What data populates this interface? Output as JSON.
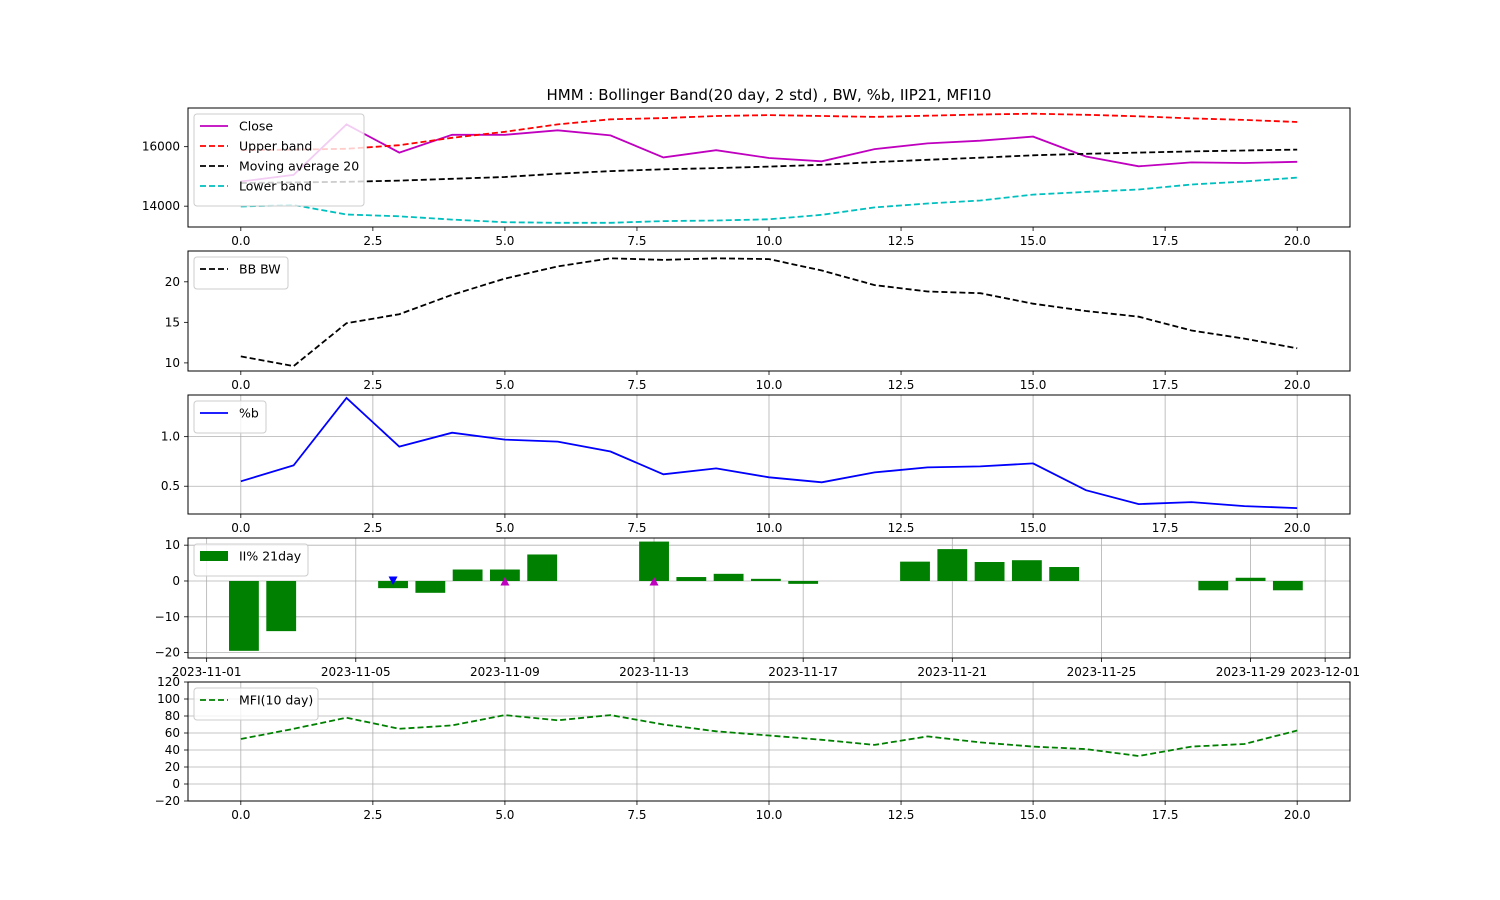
{
  "title": "HMM : Bollinger Band(20 day, 2 std) , BW, %b, IIP21, MFI10",
  "chart_data": [
    {
      "id": "price",
      "type": "line",
      "x": [
        0,
        1,
        2,
        3,
        4,
        5,
        6,
        7,
        8,
        9,
        10,
        11,
        12,
        13,
        14,
        15,
        16,
        17,
        18,
        19,
        20
      ],
      "series": [
        {
          "name": "Close",
          "color": "#bf00bf",
          "dash": "solid",
          "values": [
            14830,
            15050,
            16750,
            15800,
            16400,
            16400,
            16550,
            16380,
            15640,
            15880,
            15620,
            15510,
            15920,
            16110,
            16200,
            16340,
            15670,
            15340,
            15470,
            15450,
            15490
          ]
        },
        {
          "name": "Upper band",
          "color": "#ff0000",
          "dash": "dashed",
          "values": [
            15880,
            15900,
            15930,
            16050,
            16300,
            16500,
            16750,
            16920,
            16960,
            17030,
            17060,
            17030,
            17000,
            17040,
            17080,
            17110,
            17070,
            17020,
            16950,
            16900,
            16830
          ]
        },
        {
          "name": "Moving average 20",
          "color": "#000000",
          "dash": "dashed",
          "values": [
            14780,
            14800,
            14820,
            14860,
            14920,
            14980,
            15090,
            15180,
            15240,
            15280,
            15330,
            15390,
            15480,
            15560,
            15630,
            15710,
            15760,
            15800,
            15840,
            15870,
            15900
          ]
        },
        {
          "name": "Lower band",
          "color": "#00bfbf",
          "dash": "dashed",
          "values": [
            13990,
            14040,
            13720,
            13660,
            13550,
            13460,
            13440,
            13440,
            13500,
            13520,
            13560,
            13710,
            13960,
            14090,
            14190,
            14390,
            14480,
            14560,
            14730,
            14830,
            14960
          ]
        }
      ],
      "ylim": [
        13300,
        17300
      ],
      "xlim": [
        -1.0,
        21.0
      ],
      "yticks": [
        14000,
        16000
      ],
      "ytick_labels": [
        "14000",
        "16000"
      ],
      "xticks": [
        0,
        2.5,
        5,
        7.5,
        10,
        12.5,
        15,
        17.5,
        20
      ],
      "xtick_labels": [
        "0.0",
        "2.5",
        "5.0",
        "7.5",
        "10.0",
        "12.5",
        "15.0",
        "17.5",
        "20.0"
      ],
      "grid": false,
      "legend": "top-left"
    },
    {
      "id": "bw",
      "type": "line",
      "x": [
        0,
        1,
        2,
        3,
        4,
        5,
        6,
        7,
        8,
        9,
        10,
        11,
        12,
        13,
        14,
        15,
        16,
        17,
        18,
        19,
        20
      ],
      "series": [
        {
          "name": "BB BW",
          "color": "#000000",
          "dash": "dashed",
          "values": [
            10.8,
            9.6,
            14.9,
            16.0,
            18.4,
            20.4,
            21.9,
            22.9,
            22.7,
            22.9,
            22.8,
            21.4,
            19.6,
            18.8,
            18.6,
            17.3,
            16.4,
            15.7,
            14.0,
            13.0,
            11.8
          ]
        }
      ],
      "ylim": [
        9.0,
        23.8
      ],
      "xlim": [
        -1.0,
        21.0
      ],
      "yticks": [
        10,
        15,
        20
      ],
      "ytick_labels": [
        "10",
        "15",
        "20"
      ],
      "xticks": [
        0,
        2.5,
        5,
        7.5,
        10,
        12.5,
        15,
        17.5,
        20
      ],
      "xtick_labels": [
        "0.0",
        "2.5",
        "5.0",
        "7.5",
        "10.0",
        "12.5",
        "15.0",
        "17.5",
        "20.0"
      ],
      "grid": false,
      "legend": "top-left"
    },
    {
      "id": "pctb",
      "type": "line",
      "x": [
        0,
        1,
        2,
        3,
        4,
        5,
        6,
        7,
        8,
        9,
        10,
        11,
        12,
        13,
        14,
        15,
        16,
        17,
        18,
        19,
        20
      ],
      "series": [
        {
          "name": "%b",
          "color": "#0000ff",
          "dash": "solid",
          "values": [
            0.55,
            0.71,
            1.39,
            0.9,
            1.04,
            0.97,
            0.95,
            0.85,
            0.62,
            0.68,
            0.59,
            0.54,
            0.64,
            0.69,
            0.7,
            0.73,
            0.46,
            0.32,
            0.34,
            0.3,
            0.28
          ]
        }
      ],
      "ylim": [
        0.22,
        1.42
      ],
      "xlim": [
        -1.0,
        21.0
      ],
      "yticks": [
        0.5,
        1.0
      ],
      "ytick_labels": [
        "0.5",
        "1.0"
      ],
      "xticks": [
        0,
        2.5,
        5,
        7.5,
        10,
        12.5,
        15,
        17.5,
        20
      ],
      "xtick_labels": [
        "0.0",
        "2.5",
        "5.0",
        "7.5",
        "10.0",
        "12.5",
        "15.0",
        "17.5",
        "20.0"
      ],
      "grid": true,
      "legend": "top-left"
    },
    {
      "id": "iip",
      "type": "bar",
      "series": [
        {
          "name": "II% 21day",
          "color": "#008000",
          "categories": [
            "2023-11-02",
            "2023-11-03",
            "2023-11-06",
            "2023-11-07",
            "2023-11-08",
            "2023-11-09",
            "2023-11-10",
            "2023-11-13",
            "2023-11-14",
            "2023-11-15",
            "2023-11-16",
            "2023-11-17",
            "2023-11-20",
            "2023-11-21",
            "2023-11-22",
            "2023-11-23",
            "2023-11-24",
            "2023-11-28",
            "2023-11-29",
            "2023-11-30"
          ],
          "values": [
            -19.5,
            -14.0,
            -2.0,
            -3.3,
            3.2,
            3.2,
            7.4,
            11.0,
            1.1,
            2.0,
            0.6,
            -0.8,
            5.4,
            8.9,
            5.3,
            5.8,
            3.9,
            -2.6,
            0.9,
            -2.6
          ]
        }
      ],
      "markers": [
        {
          "date": "2023-11-06",
          "value": 0,
          "shape": "triangle-down",
          "color": "#0000ff"
        },
        {
          "date": "2023-11-09",
          "value": 0,
          "shape": "triangle-up",
          "color": "#bf00bf"
        },
        {
          "date": "2023-11-13",
          "value": 0,
          "shape": "triangle-up",
          "color": "#bf00bf"
        }
      ],
      "ylim": [
        -21.5,
        12.0
      ],
      "xlim": [
        "2023-10-31T12:00",
        "2023-12-01T16:00"
      ],
      "yticks": [
        -20,
        -10,
        0,
        10
      ],
      "ytick_labels": [
        "−20",
        "−10",
        "0",
        "10"
      ],
      "xticks": [
        "2023-11-01",
        "2023-11-05",
        "2023-11-09",
        "2023-11-13",
        "2023-11-17",
        "2023-11-21",
        "2023-11-25",
        "2023-11-29",
        "2023-12-01"
      ],
      "xtick_labels": [
        "2023-11-01",
        "2023-11-05",
        "2023-11-09",
        "2023-11-13",
        "2023-11-17",
        "2023-11-21",
        "2023-11-25",
        "2023-11-29",
        "2023-12-01"
      ],
      "grid": true,
      "legend": "top-left"
    },
    {
      "id": "mfi",
      "type": "line",
      "x": [
        0,
        1,
        2,
        3,
        4,
        5,
        6,
        7,
        8,
        9,
        10,
        11,
        12,
        13,
        14,
        15,
        16,
        17,
        18,
        19,
        20
      ],
      "series": [
        {
          "name": "MFI(10 day)",
          "color": "#008000",
          "dash": "dashed",
          "values": [
            53,
            65,
            78,
            65,
            69,
            81,
            75,
            81,
            70,
            62,
            57,
            52,
            46,
            56,
            49,
            44,
            41,
            33,
            44,
            47,
            63
          ]
        }
      ],
      "ylim": [
        -20,
        120
      ],
      "xlim": [
        -1.0,
        21.0
      ],
      "yticks": [
        -20,
        0,
        20,
        40,
        60,
        80,
        100,
        120
      ],
      "ytick_labels": [
        "−20",
        "0",
        "20",
        "40",
        "60",
        "80",
        "100",
        "120"
      ],
      "xticks": [
        0,
        2.5,
        5,
        7.5,
        10,
        12.5,
        15,
        17.5,
        20
      ],
      "xtick_labels": [
        "0.0",
        "2.5",
        "5.0",
        "7.5",
        "10.0",
        "12.5",
        "15.0",
        "17.5",
        "20.0"
      ],
      "grid": true,
      "legend": "top-left"
    }
  ]
}
